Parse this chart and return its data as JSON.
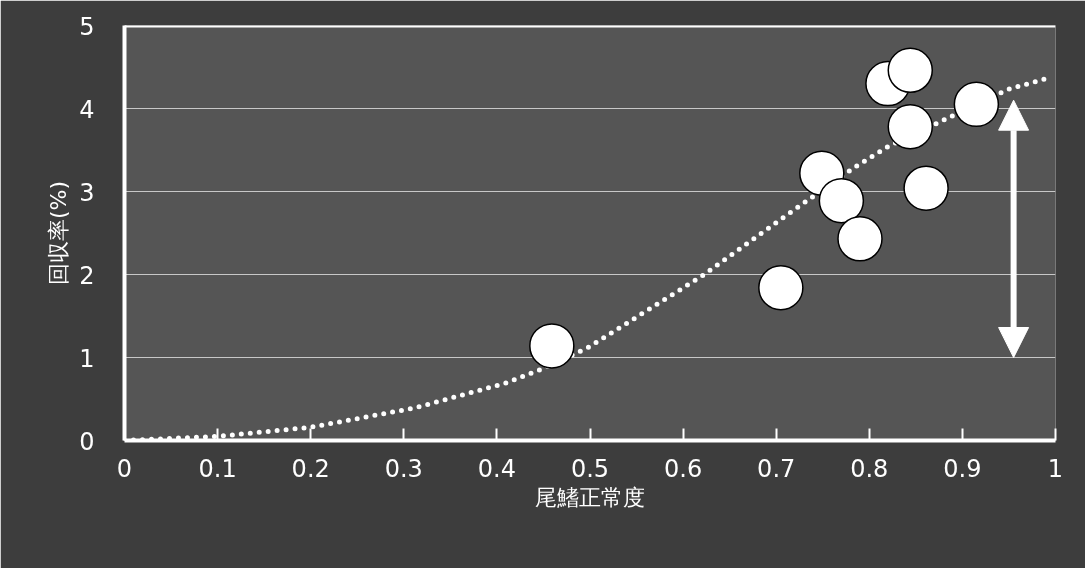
{
  "chart_data": {
    "type": "scatter",
    "xlabel": "尾鰭正常度",
    "ylabel": "回収率(%)",
    "xlim": [
      0,
      1
    ],
    "ylim": [
      0,
      5
    ],
    "xticks": [
      0,
      0.1,
      0.2,
      0.3,
      0.4,
      0.5,
      0.6,
      0.7,
      0.8,
      0.9,
      1
    ],
    "yticks": [
      0,
      1,
      2,
      3,
      4,
      5
    ],
    "grid": "y",
    "series": [
      {
        "marker": "circle",
        "color": "#ffffff",
        "x": [
          0.459,
          0.705,
          0.749,
          0.77,
          0.79,
          0.82,
          0.844,
          0.844,
          0.861,
          0.915
        ],
        "values": [
          1.14,
          1.84,
          3.22,
          2.89,
          2.43,
          4.3,
          4.46,
          3.78,
          3.04,
          4.05
        ]
      },
      {
        "type": "line",
        "line_style": "dotted",
        "color": "#ffffff",
        "x": [
          0,
          0.1,
          0.2,
          0.311,
          0.409,
          0.448,
          0.498,
          0.62,
          0.713,
          0.784,
          0.82,
          0.949,
          0.99
        ],
        "values": [
          0.0,
          0.05,
          0.16,
          0.39,
          0.69,
          0.86,
          1.12,
          1.98,
          2.73,
          3.29,
          3.54,
          4.23,
          4.36
        ]
      }
    ]
  }
}
